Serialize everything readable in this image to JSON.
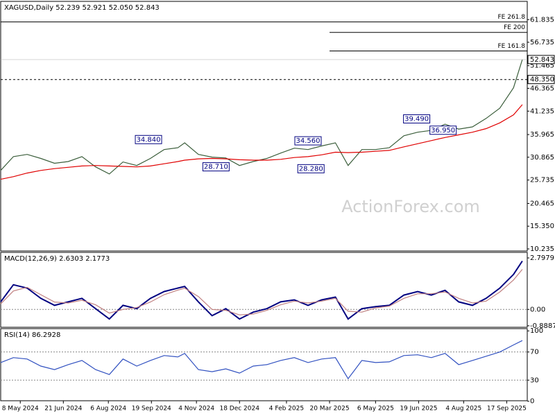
{
  "chart_data": [
    {
      "type": "line",
      "title": "XAGUSD,Daily  52.239 52.921 52.050 52.843",
      "watermark": "ActionForex.com",
      "x": [
        "2024-04-18",
        "2024-05-01",
        "2024-05-15",
        "2024-05-29",
        "2024-06-12",
        "2024-06-26",
        "2024-07-10",
        "2024-07-24",
        "2024-08-07",
        "2024-08-21",
        "2024-09-04",
        "2024-09-18",
        "2024-10-02",
        "2024-10-16",
        "2024-10-23",
        "2024-11-06",
        "2024-11-20",
        "2024-12-04",
        "2024-12-18",
        "2025-01-01",
        "2025-01-15",
        "2025-01-29",
        "2025-02-12",
        "2025-02-26",
        "2025-03-12",
        "2025-03-26",
        "2025-04-08",
        "2025-04-22",
        "2025-05-06",
        "2025-05-20",
        "2025-06-04",
        "2025-06-18",
        "2025-07-02",
        "2025-07-16",
        "2025-07-30",
        "2025-08-13",
        "2025-08-27",
        "2025-09-10",
        "2025-09-24",
        "2025-10-03"
      ],
      "xlim": [
        "2024-04-18",
        "2025-10-08"
      ],
      "series": [
        {
          "color": "#3b5e3b",
          "values": [
            27.9,
            31.0,
            31.5,
            30.6,
            29.5,
            29.9,
            31.0,
            28.7,
            27.1,
            29.8,
            29.0,
            30.6,
            32.6,
            33.0,
            34.1,
            31.5,
            30.9,
            30.7,
            29.0,
            29.9,
            30.6,
            31.8,
            32.9,
            32.6,
            33.4,
            34.1,
            29.0,
            32.6,
            32.6,
            33.0,
            35.7,
            36.5,
            36.9,
            38.3,
            37.2,
            37.7,
            39.6,
            41.9,
            46.5,
            52.843
          ]
        },
        {
          "color": "#e00000",
          "values": [
            25.9,
            26.5,
            27.3,
            27.9,
            28.3,
            28.6,
            28.9,
            29.0,
            28.9,
            28.8,
            28.7,
            28.9,
            29.4,
            29.9,
            30.2,
            30.5,
            30.6,
            30.5,
            30.3,
            30.2,
            30.2,
            30.4,
            30.8,
            31.0,
            31.4,
            32.0,
            31.9,
            32.0,
            32.2,
            32.4,
            33.2,
            33.9,
            34.6,
            35.3,
            35.9,
            36.5,
            37.3,
            38.6,
            40.4,
            42.7
          ]
        }
      ],
      "ylim": [
        9.77,
        65.93
      ],
      "yticks": [
        61.835,
        56.735,
        51.465,
        46.365,
        41.235,
        35.965,
        30.865,
        25.735,
        20.465,
        {
          "value": 15.35,
          "label": "15.350"
        },
        10.235
      ],
      "levels": [
        {
          "value": 61.3,
          "label": "FE 261.8",
          "x_start": "2024-04-18"
        },
        {
          "value": 58.95,
          "label": "FE 200",
          "x_start": "2025-03-20"
        },
        {
          "value": 54.77,
          "label": "FE 161.8",
          "x_start": "2025-03-20"
        }
      ],
      "dashed_level": {
        "value": 48.35,
        "label": "48.350"
      },
      "annotations": [
        {
          "value": 34.84,
          "label": "34.840",
          "x": "2024-09-16"
        },
        {
          "value": 34.56,
          "label": "34.560",
          "x": "2025-02-26"
        },
        {
          "value": 28.71,
          "label": "28.710",
          "x": "2024-11-24"
        },
        {
          "value": 28.28,
          "label": "28.280",
          "x": "2025-03-01"
        },
        {
          "value": 39.49,
          "label": "39.490",
          "x": "2025-06-17"
        },
        {
          "value": 36.95,
          "label": "36.950",
          "x": "2025-07-14"
        }
      ]
    },
    {
      "type": "line",
      "title": "MACD(12,26,9) 2.6303 2.1773",
      "x": [
        "2024-04-18",
        "2024-05-01",
        "2024-05-15",
        "2024-05-29",
        "2024-06-12",
        "2024-06-26",
        "2024-07-10",
        "2024-07-24",
        "2024-08-07",
        "2024-08-21",
        "2024-09-04",
        "2024-09-18",
        "2024-10-02",
        "2024-10-16",
        "2024-10-23",
        "2024-11-06",
        "2024-11-20",
        "2024-12-04",
        "2024-12-18",
        "2025-01-01",
        "2025-01-15",
        "2025-01-29",
        "2025-02-12",
        "2025-02-26",
        "2025-03-12",
        "2025-03-26",
        "2025-04-08",
        "2025-04-22",
        "2025-05-06",
        "2025-05-20",
        "2025-06-04",
        "2025-06-18",
        "2025-07-02",
        "2025-07-16",
        "2025-07-30",
        "2025-08-13",
        "2025-08-27",
        "2025-09-10",
        "2025-09-24",
        "2025-10-03"
      ],
      "xlim": [
        "2024-04-18",
        "2025-10-08"
      ],
      "series": [
        {
          "color": "#000080",
          "values": [
            0.41,
            1.34,
            1.16,
            0.6,
            0.22,
            0.41,
            0.6,
            0.04,
            -0.52,
            0.22,
            0.04,
            0.6,
            0.97,
            1.16,
            1.25,
            0.41,
            -0.34,
            0.04,
            -0.52,
            -0.15,
            0.04,
            0.41,
            0.52,
            0.22,
            0.52,
            0.67,
            -0.52,
            0.04,
            0.15,
            0.22,
            0.78,
            0.97,
            0.78,
            1.04,
            0.41,
            0.22,
            0.6,
            1.16,
            1.9,
            2.6303
          ]
        },
        {
          "color": "#c08080",
          "values": [
            0.3,
            1.0,
            1.2,
            0.8,
            0.4,
            0.35,
            0.5,
            0.25,
            -0.2,
            0.0,
            0.1,
            0.4,
            0.8,
            1.05,
            1.15,
            0.7,
            0.0,
            -0.05,
            -0.3,
            -0.25,
            -0.05,
            0.25,
            0.45,
            0.35,
            0.45,
            0.6,
            -0.1,
            -0.15,
            0.08,
            0.18,
            0.6,
            0.85,
            0.85,
            0.95,
            0.6,
            0.35,
            0.45,
            0.95,
            1.6,
            2.1773
          ]
        }
      ],
      "ylim": [
        -0.97,
        3.1
      ],
      "yticks": [
        2.7979,
        {
          "value": 0,
          "label": "0.00"
        },
        -0.8887
      ],
      "dotted_levels": [
        0
      ]
    },
    {
      "type": "line",
      "title": "RSI(14) 86.2928",
      "x": [
        "2024-04-18",
        "2024-05-01",
        "2024-05-15",
        "2024-05-29",
        "2024-06-12",
        "2024-06-26",
        "2024-07-10",
        "2024-07-24",
        "2024-08-07",
        "2024-08-21",
        "2024-09-04",
        "2024-09-18",
        "2024-10-02",
        "2024-10-16",
        "2024-10-23",
        "2024-11-06",
        "2024-11-20",
        "2024-12-04",
        "2024-12-18",
        "2025-01-01",
        "2025-01-15",
        "2025-01-29",
        "2025-02-12",
        "2025-02-26",
        "2025-03-12",
        "2025-03-26",
        "2025-04-08",
        "2025-04-22",
        "2025-05-06",
        "2025-05-20",
        "2025-06-04",
        "2025-06-18",
        "2025-07-02",
        "2025-07-16",
        "2025-07-30",
        "2025-08-13",
        "2025-08-27",
        "2025-09-10",
        "2025-09-24",
        "2025-10-03"
      ],
      "xlim": [
        "2024-04-18",
        "2025-10-08"
      ],
      "series": [
        {
          "color": "#3050c0",
          "values": [
            55,
            62,
            60,
            50,
            45,
            52,
            58,
            45,
            38,
            60,
            50,
            58,
            65,
            63,
            68,
            45,
            42,
            46,
            40,
            50,
            52,
            58,
            62,
            55,
            60,
            62,
            32,
            58,
            55,
            56,
            65,
            66,
            62,
            68,
            52,
            58,
            64,
            70,
            80,
            86.2928
          ]
        }
      ],
      "ylim": [
        0.7,
        103.2
      ],
      "yticks": [
        100,
        70,
        30,
        0
      ],
      "dotted_levels": [
        70,
        30
      ],
      "xticks": [
        {
          "value": "2024-05-08",
          "label": "8 May 2024"
        },
        {
          "value": "2024-06-21",
          "label": "21 Jun 2024"
        },
        {
          "value": "2024-08-06",
          "label": "6 Aug 2024"
        },
        {
          "value": "2024-09-19",
          "label": "19 Sep 2024"
        },
        {
          "value": "2024-11-04",
          "label": "4 Nov 2024"
        },
        {
          "value": "2024-12-18",
          "label": "18 Dec 2024"
        },
        {
          "value": "2025-02-04",
          "label": "4 Feb 2025"
        },
        {
          "value": "2025-03-20",
          "label": "20 Mar 2025"
        },
        {
          "value": "2025-05-06",
          "label": "6 May 2025"
        },
        {
          "value": "2025-06-19",
          "label": "19 Jun 2025"
        },
        {
          "value": "2025-08-04",
          "label": "4 Aug 2025"
        },
        {
          "value": "2025-09-17",
          "label": "17 Sep 2025"
        }
      ]
    }
  ]
}
